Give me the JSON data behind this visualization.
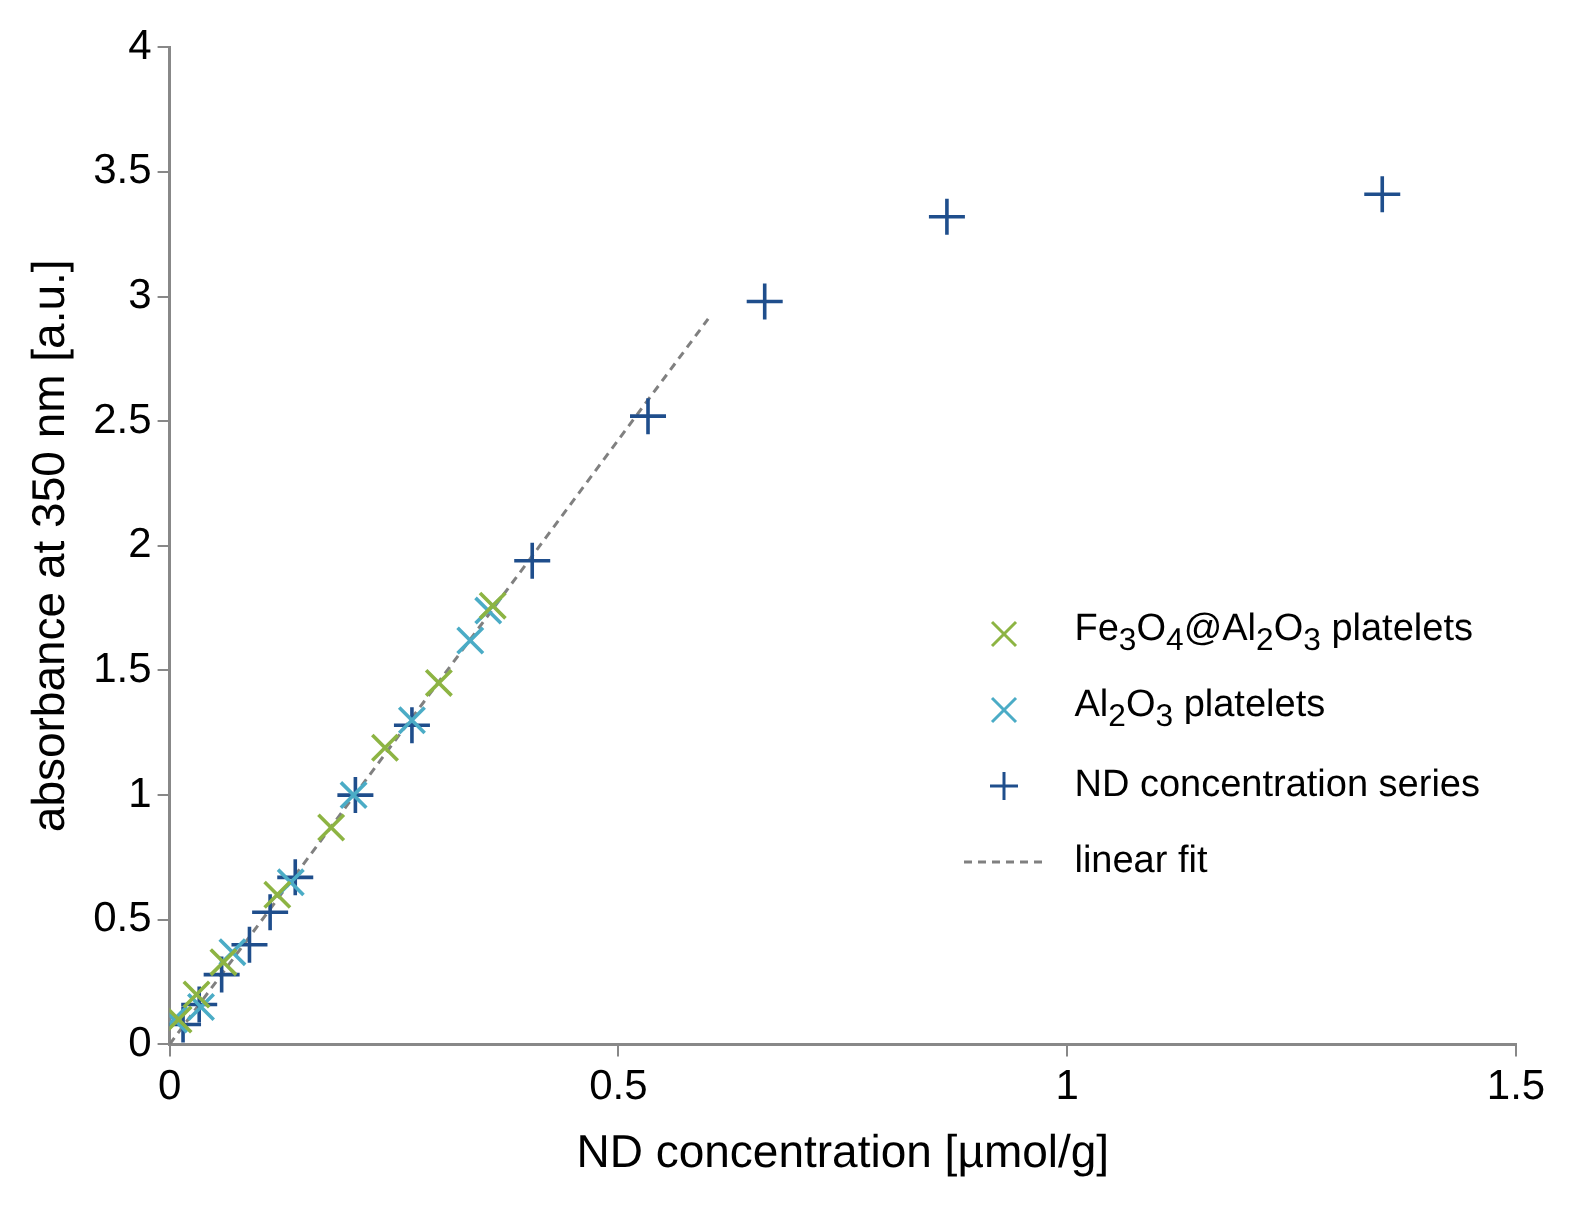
{
  "chart_data": {
    "type": "scatter",
    "xlabel": "ND concentration [µmol/g]",
    "ylabel": "absorbance at 350 nm [a.u.]",
    "xlim": [
      0,
      1.5
    ],
    "xticks": [
      0,
      0.5,
      1,
      1.5
    ],
    "ylim": [
      0,
      4
    ],
    "yticks": [
      0,
      0.5,
      1,
      1.5,
      2,
      2.5,
      3,
      3.5,
      4
    ],
    "grid": false,
    "legend": "right",
    "series": [
      {
        "name": "Fe$_{3}$O$_{4}$@Al$_{2}$O$_{3}$ platelets",
        "color": "#8db443",
        "marker": "cross",
        "x": [
          0.01,
          0.03,
          0.06,
          0.12,
          0.18,
          0.24,
          0.3,
          0.36
        ],
        "values": [
          0.1,
          0.2,
          0.33,
          0.6,
          0.87,
          1.19,
          1.45,
          1.76
        ]
      },
      {
        "name": "Al$_{2}$O$_{3}$ platelets",
        "color": "#4bacc6",
        "marker": "cross",
        "x": [
          0.005,
          0.035,
          0.07,
          0.135,
          0.205,
          0.27,
          0.335,
          0.355
        ],
        "values": [
          0.1,
          0.15,
          0.37,
          0.65,
          1.0,
          1.3,
          1.62,
          1.74
        ]
      },
      {
        "name": "ND concentration series",
        "color": "#1f4e8c",
        "marker": "plus",
        "x": [
          0.015,
          0.033,
          0.058,
          0.089,
          0.112,
          0.14,
          0.207,
          0.27,
          0.404,
          0.533,
          0.663,
          0.866,
          1.351
        ],
        "values": [
          0.08,
          0.16,
          0.28,
          0.4,
          0.53,
          0.67,
          1.0,
          1.28,
          1.94,
          2.52,
          2.98,
          3.32,
          3.41
        ]
      },
      {
        "name": "linear fit",
        "type": "line",
        "color": "#808080",
        "line_style": "dashed",
        "marker": "none",
        "x": [
          0,
          0.6
        ],
        "values": [
          0,
          2.91
        ]
      }
    ]
  }
}
